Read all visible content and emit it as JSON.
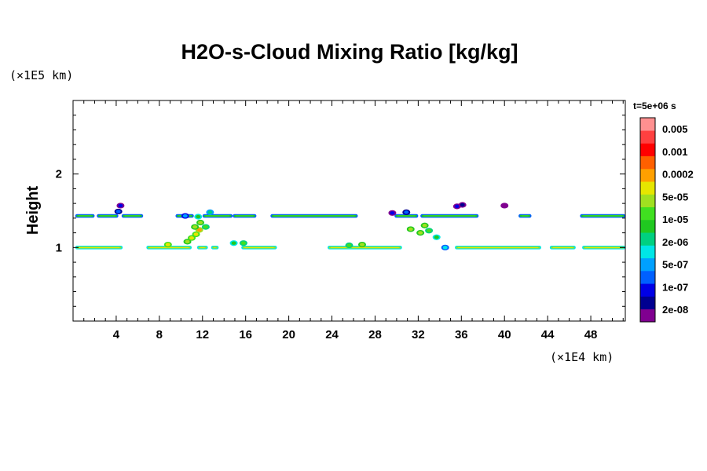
{
  "chart_data": {
    "type": "heatmap",
    "title": "H2O-s-Cloud Mixing Ratio [kg/kg]",
    "xlabel": "",
    "ylabel": "Height",
    "x_unit": "(×1E4 km)",
    "y_unit": "(×1E5 km)",
    "time_label": "t=5e+06 s",
    "xlim": [
      0,
      51.2
    ],
    "ylim": [
      0,
      3
    ],
    "x_ticks": [
      4,
      8,
      12,
      16,
      20,
      24,
      28,
      32,
      36,
      40,
      44,
      48
    ],
    "y_ticks": [
      1,
      2
    ],
    "x_tick_labels": [
      "4",
      "8",
      "12",
      "16",
      "20",
      "24",
      "28",
      "32",
      "36",
      "40",
      "44",
      "48"
    ],
    "y_tick_labels": [
      "1",
      "2"
    ],
    "colorbar": {
      "levels": [
        "0.005",
        "0.001",
        "0.0002",
        "5e-05",
        "1e-05",
        "2e-06",
        "5e-07",
        "1e-07",
        "2e-08"
      ],
      "colors": [
        "#800090",
        "#000090",
        "#0000e6",
        "#0060ff",
        "#00a0ff",
        "#00e6e6",
        "#00d080",
        "#20c820",
        "#40e020",
        "#a0e020",
        "#e6e600",
        "#ffa000",
        "#ff6000",
        "#ff0000",
        "#ff4040",
        "#ff9090"
      ]
    },
    "layers": [
      {
        "name": "upper",
        "y": 1.43,
        "thickness": 0.05,
        "x_ranges": [
          [
            0.2,
            2.0
          ],
          [
            2.2,
            4.2
          ],
          [
            4.5,
            6.5
          ],
          [
            9.5,
            11.2
          ],
          [
            12.0,
            14.8
          ],
          [
            14.8,
            17.0
          ],
          [
            18.3,
            26.4
          ],
          [
            29.8,
            32.0
          ],
          [
            32.2,
            37.6
          ],
          [
            41.3,
            42.5
          ],
          [
            47.0,
            51.2
          ]
        ],
        "level": 7
      },
      {
        "name": "lower",
        "y": 1.0,
        "thickness": 0.05,
        "x_ranges": [
          [
            0.2,
            4.6
          ],
          [
            6.8,
            11.0
          ],
          [
            11.5,
            12.5
          ],
          [
            12.8,
            13.5
          ],
          [
            15.6,
            18.9
          ],
          [
            23.6,
            30.5
          ],
          [
            35.4,
            43.4
          ],
          [
            44.2,
            46.6
          ],
          [
            47.2,
            51.2
          ]
        ],
        "level": 9
      }
    ],
    "cells": [
      {
        "x": 4.4,
        "y": 1.57,
        "level": 2
      },
      {
        "x": 4.2,
        "y": 1.49,
        "level": 3
      },
      {
        "x": 10.6,
        "y": 1.08,
        "level": 9
      },
      {
        "x": 11.0,
        "y": 1.13,
        "level": 10
      },
      {
        "x": 11.4,
        "y": 1.18,
        "level": 10
      },
      {
        "x": 11.7,
        "y": 1.24,
        "level": 11
      },
      {
        "x": 11.8,
        "y": 1.34,
        "level": 9
      },
      {
        "x": 11.6,
        "y": 1.42,
        "level": 7
      },
      {
        "x": 11.3,
        "y": 1.28,
        "level": 9
      },
      {
        "x": 12.3,
        "y": 1.28,
        "level": 8
      },
      {
        "x": 12.7,
        "y": 1.48,
        "level": 6
      },
      {
        "x": 14.9,
        "y": 1.06,
        "level": 7
      },
      {
        "x": 15.8,
        "y": 1.06,
        "level": 8
      },
      {
        "x": 29.6,
        "y": 1.47,
        "level": 2
      },
      {
        "x": 30.9,
        "y": 1.48,
        "level": 3
      },
      {
        "x": 31.3,
        "y": 1.25,
        "level": 9
      },
      {
        "x": 32.2,
        "y": 1.2,
        "level": 9
      },
      {
        "x": 32.6,
        "y": 1.3,
        "level": 9
      },
      {
        "x": 33.0,
        "y": 1.23,
        "level": 8
      },
      {
        "x": 33.7,
        "y": 1.14,
        "level": 7
      },
      {
        "x": 34.5,
        "y": 1.0,
        "level": 5
      },
      {
        "x": 35.6,
        "y": 1.56,
        "level": 2
      },
      {
        "x": 36.1,
        "y": 1.58,
        "level": 1
      },
      {
        "x": 40.0,
        "y": 1.57,
        "level": 0
      },
      {
        "x": 25.6,
        "y": 1.03,
        "level": 8
      },
      {
        "x": 26.8,
        "y": 1.04,
        "level": 9
      },
      {
        "x": 8.8,
        "y": 1.04,
        "level": 10
      },
      {
        "x": 10.4,
        "y": 1.43,
        "level": 4
      }
    ]
  }
}
